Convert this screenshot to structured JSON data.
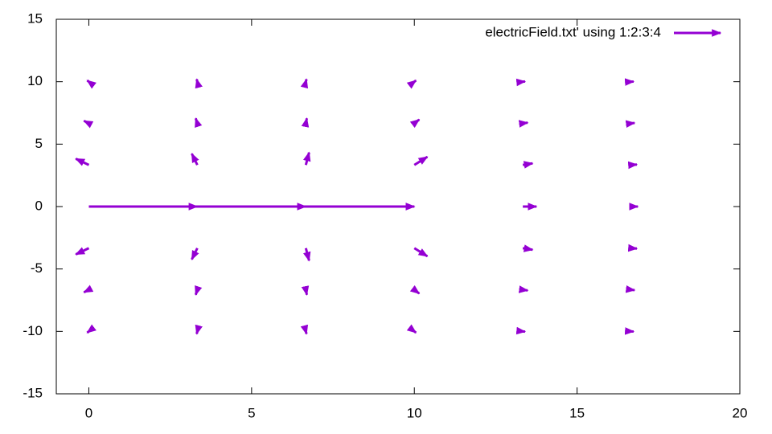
{
  "chart_data": {
    "type": "vector",
    "legend": "top-right",
    "series": [
      {
        "name": "electricField.txt' using 1:2:3:4",
        "color": "#9400d3",
        "x": [
          0,
          0,
          0,
          0,
          0,
          0,
          0,
          3.333,
          3.333,
          3.333,
          3.333,
          3.333,
          3.333,
          3.333,
          6.667,
          6.667,
          6.667,
          6.667,
          6.667,
          6.667,
          6.667,
          10,
          10,
          10,
          10,
          10,
          10,
          10,
          13.333,
          13.333,
          13.333,
          13.333,
          13.333,
          13.333,
          13.333,
          16.667,
          16.667,
          16.667,
          16.667,
          16.667,
          16.667,
          16.667
        ],
        "y": [
          -10,
          -6.667,
          -3.333,
          0,
          3.333,
          6.667,
          10,
          -10,
          -6.667,
          -3.333,
          0,
          3.333,
          6.667,
          10,
          -10,
          -6.667,
          -3.333,
          0,
          3.333,
          6.667,
          10,
          -10,
          -6.667,
          -3.333,
          0,
          3.333,
          6.667,
          10,
          -10,
          -6.667,
          -3.333,
          0,
          3.333,
          6.667,
          10,
          -10,
          -6.667,
          -3.333,
          0,
          3.333,
          6.667,
          10
        ],
        "dx": [
          -0.05,
          -0.15,
          -0.4,
          10,
          -0.4,
          -0.15,
          -0.05,
          -0.02,
          -0.05,
          -0.17,
          0,
          -0.17,
          -0.05,
          -0.02,
          0.02,
          0.03,
          0.1,
          0,
          0.1,
          0.03,
          0.02,
          0.05,
          0.15,
          0.4,
          0,
          0.4,
          0.15,
          0.05,
          0.07,
          0.15,
          0.3,
          0.42,
          0.3,
          0.15,
          0.07,
          0.07,
          0.1,
          0.17,
          0.2,
          0.17,
          0.1,
          0.07
        ],
        "dy": [
          -0.1,
          -0.2,
          -0.5,
          0,
          0.5,
          0.2,
          0.1,
          -0.2,
          -0.4,
          -0.9,
          0,
          0.9,
          0.4,
          0.2,
          -0.2,
          -0.4,
          -1.0,
          0,
          1.0,
          0.4,
          0.2,
          -0.1,
          -0.3,
          -0.65,
          0,
          0.65,
          0.3,
          0.1,
          -0.02,
          -0.05,
          -0.13,
          0,
          0.13,
          0.05,
          0.02,
          -0.01,
          -0.03,
          -0.03,
          0,
          0.03,
          0.03,
          0.01
        ]
      }
    ],
    "xlim": [
      -1,
      20
    ],
    "xticks": [
      0,
      5,
      10,
      15,
      20
    ],
    "ylim": [
      -15,
      15
    ],
    "yticks": [
      -15,
      -10,
      -5,
      0,
      5,
      10,
      15
    ]
  }
}
